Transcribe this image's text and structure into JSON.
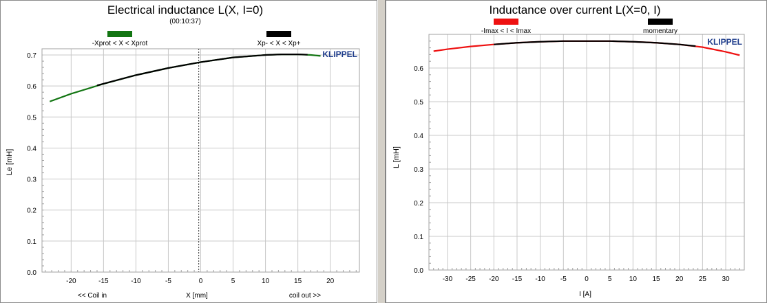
{
  "chart_data": [
    {
      "type": "line",
      "title": "Electrical inductance L(X, I=0)",
      "subtitle": "(00:10:37)",
      "xlabel": "X [mm]",
      "ylabel": "Le [mH]",
      "x_left_note": "<< Coil in",
      "x_right_note": "coil out >>",
      "xlim": [
        -24.5,
        24.5
      ],
      "ylim": [
        0,
        0.72
      ],
      "xticks": [
        -20,
        -15,
        -10,
        -5,
        0,
        5,
        10,
        15,
        20
      ],
      "yticks": [
        0.0,
        0.1,
        0.2,
        0.3,
        0.4,
        0.5,
        0.6,
        0.7
      ],
      "grid": true,
      "brand": "KLIPPEL",
      "marker_line_x": -0.3,
      "legend": [
        {
          "name": "-Xprot < X < Xprot",
          "color": "#127512"
        },
        {
          "name": "Xp- < X < Xp+",
          "color": "#000000"
        }
      ],
      "series": [
        {
          "name": "-Xprot < X < Xprot",
          "color": "#127512",
          "x": [
            -23.3,
            -20,
            -15,
            -10,
            -5,
            0,
            5,
            10,
            12.5,
            15,
            17,
            18.5
          ],
          "y": [
            0.55,
            0.575,
            0.607,
            0.635,
            0.658,
            0.677,
            0.692,
            0.7,
            0.702,
            0.702,
            0.7,
            0.697
          ]
        },
        {
          "name": "Xp- < X < Xp+",
          "color": "#000000",
          "x": [
            -16,
            -10,
            -5,
            0,
            5,
            10,
            12.5,
            15,
            16.5
          ],
          "y": [
            0.602,
            0.635,
            0.658,
            0.677,
            0.692,
            0.7,
            0.702,
            0.702,
            0.701
          ]
        }
      ]
    },
    {
      "type": "line",
      "title": "Inductance over current L(X=0, I)",
      "xlabel": "I [A]",
      "ylabel": "L [mH]",
      "xlim": [
        -34,
        34
      ],
      "ylim": [
        0,
        0.7
      ],
      "xticks": [
        -30,
        -25,
        -20,
        -15,
        -10,
        -5,
        0,
        5,
        10,
        15,
        20,
        25,
        30
      ],
      "yticks": [
        0.0,
        0.1,
        0.2,
        0.3,
        0.4,
        0.5,
        0.6
      ],
      "grid": true,
      "brand": "KLIPPEL",
      "legend": [
        {
          "name": "-Imax < I < Imax",
          "color": "#ee1111"
        },
        {
          "name": "momentary",
          "color": "#000000"
        }
      ],
      "series": [
        {
          "name": "-Imax < I < Imax",
          "color": "#ee1111",
          "x": [
            -33,
            -30,
            -25,
            -20,
            -15,
            -10,
            -5,
            0,
            5,
            10,
            15,
            20,
            25,
            30,
            33
          ],
          "y": [
            0.65,
            0.656,
            0.664,
            0.67,
            0.675,
            0.678,
            0.68,
            0.68,
            0.68,
            0.678,
            0.675,
            0.67,
            0.662,
            0.648,
            0.638
          ]
        },
        {
          "name": "momentary",
          "color": "#000000",
          "x": [
            -20,
            -15,
            -10,
            -5,
            0,
            5,
            10,
            15,
            20,
            23.5
          ],
          "y": [
            0.67,
            0.675,
            0.678,
            0.68,
            0.68,
            0.68,
            0.678,
            0.675,
            0.67,
            0.665
          ]
        }
      ]
    }
  ]
}
